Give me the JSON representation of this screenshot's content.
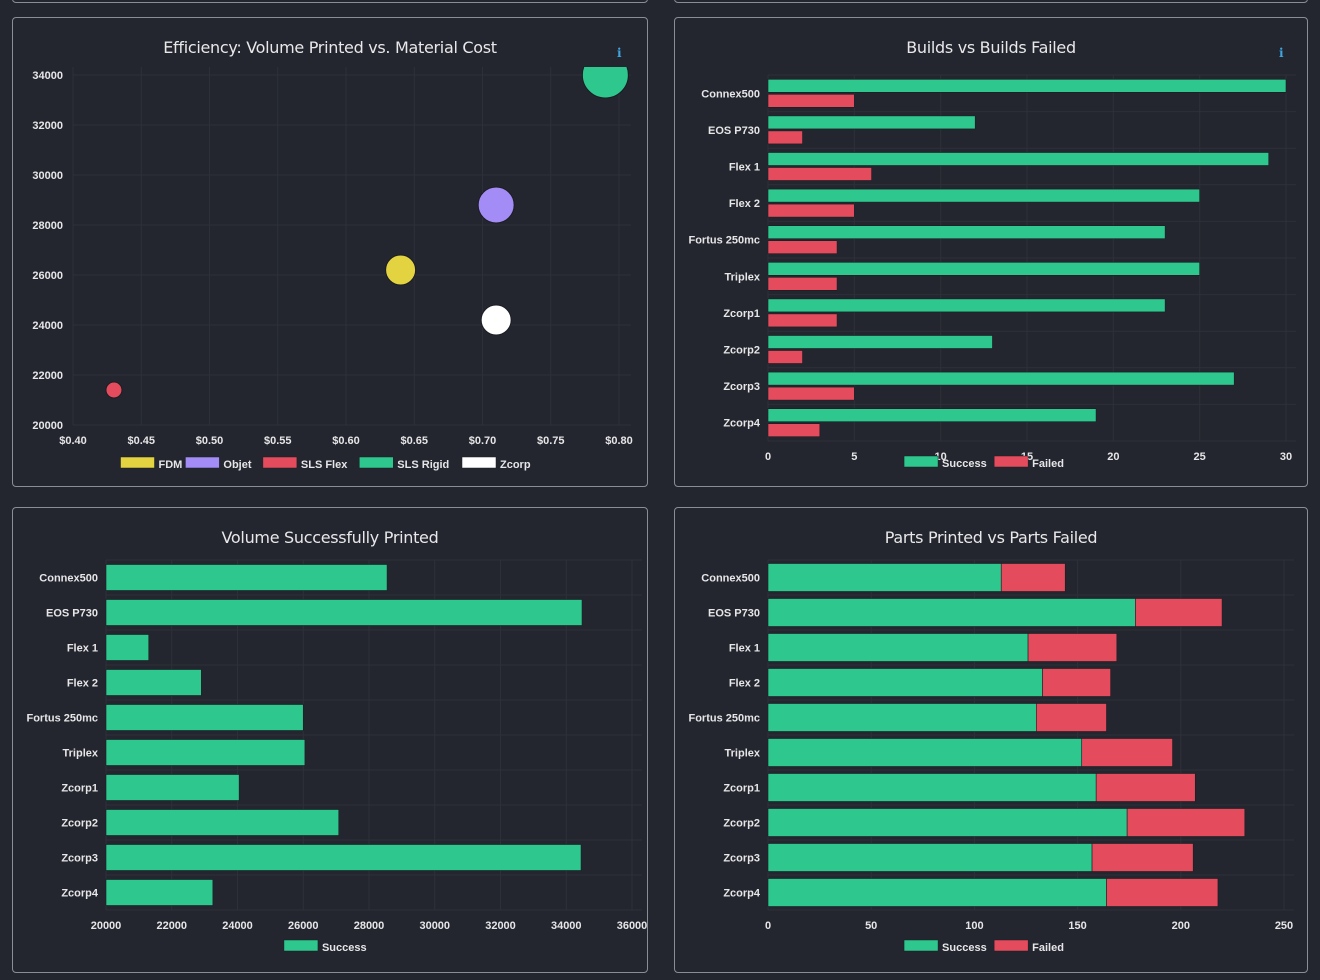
{
  "theme": {
    "background": "#24262f",
    "success_color": "#2ec88f",
    "failed_color": "#e44c5e",
    "info_color": "#3fa6e0"
  },
  "panels": {
    "efficiency": {
      "title": "Efficiency: Volume Printed vs. Material Cost",
      "info_icon": "i"
    },
    "builds": {
      "title": "Builds vs Builds Failed",
      "info_icon": "i"
    },
    "volume": {
      "title": "Volume Successfully Printed"
    },
    "parts": {
      "title": "Parts Printed vs Parts Failed"
    }
  },
  "chart_data": [
    {
      "id": "efficiency",
      "type": "scatter",
      "title": "Efficiency: Volume Printed vs. Material Cost",
      "xlabel": "",
      "ylabel": "",
      "xlim": [
        0.4,
        0.8
      ],
      "ylim": [
        20000,
        34000
      ],
      "x_ticks": [
        "$0.40",
        "$0.45",
        "$0.50",
        "$0.55",
        "$0.60",
        "$0.65",
        "$0.70",
        "$0.75",
        "$0.80"
      ],
      "x_tick_values": [
        0.4,
        0.45,
        0.5,
        0.55,
        0.6,
        0.65,
        0.7,
        0.75,
        0.8
      ],
      "y_ticks": [
        "20000",
        "22000",
        "24000",
        "26000",
        "28000",
        "30000",
        "32000",
        "34000"
      ],
      "y_tick_values": [
        20000,
        22000,
        24000,
        26000,
        28000,
        30000,
        32000,
        34000
      ],
      "grid": true,
      "legend_position": "bottom",
      "series": [
        {
          "name": "FDM",
          "color": "#e3d341",
          "x": 0.64,
          "y": 26200,
          "size": 15
        },
        {
          "name": "Objet",
          "color": "#a38cf6",
          "x": 0.71,
          "y": 28800,
          "size": 18
        },
        {
          "name": "SLS Flex",
          "color": "#e44c5e",
          "x": 0.43,
          "y": 21400,
          "size": 8
        },
        {
          "name": "SLS Rigid",
          "color": "#2ec88f",
          "x": 0.79,
          "y": 34000,
          "size": 23
        },
        {
          "name": "Zcorp",
          "color": "#ffffff",
          "x": 0.71,
          "y": 24200,
          "size": 15
        }
      ]
    },
    {
      "id": "builds",
      "type": "bar",
      "orientation": "horizontal",
      "title": "Builds vs Builds Failed",
      "categories": [
        "Connex500",
        "EOS P730",
        "Flex 1",
        "Flex 2",
        "Fortus 250mc",
        "Triplex",
        "Zcorp1",
        "Zcorp2",
        "Zcorp3",
        "Zcorp4"
      ],
      "xlim": [
        0,
        30
      ],
      "x_ticks": [
        "0",
        "5",
        "10",
        "15",
        "20",
        "25",
        "30"
      ],
      "x_tick_values": [
        0,
        5,
        10,
        15,
        20,
        25,
        30
      ],
      "grid": true,
      "legend_position": "bottom",
      "series": [
        {
          "name": "Success",
          "color": "#2ec88f",
          "values": [
            30,
            12,
            29,
            25,
            23,
            25,
            23,
            13,
            27,
            19
          ]
        },
        {
          "name": "Failed",
          "color": "#e44c5e",
          "values": [
            5,
            2,
            6,
            5,
            4,
            4,
            4,
            2,
            5,
            3
          ]
        }
      ]
    },
    {
      "id": "volume",
      "type": "bar",
      "orientation": "horizontal",
      "title": "Volume Successfully Printed",
      "categories": [
        "Connex500",
        "EOS P730",
        "Flex 1",
        "Flex 2",
        "Fortus 250mc",
        "Triplex",
        "Zcorp1",
        "Zcorp2",
        "Zcorp3",
        "Zcorp4"
      ],
      "xlim": [
        20000,
        36000
      ],
      "x_ticks": [
        "20000",
        "22000",
        "24000",
        "26000",
        "28000",
        "30000",
        "32000",
        "34000",
        "36000"
      ],
      "x_tick_values": [
        20000,
        22000,
        24000,
        26000,
        28000,
        30000,
        32000,
        34000,
        36000
      ],
      "grid": true,
      "legend_position": "bottom",
      "series": [
        {
          "name": "Success",
          "color": "#2ec88f",
          "values": [
            28550,
            34480,
            21300,
            22900,
            26000,
            26050,
            24050,
            27080,
            34450,
            23250
          ]
        }
      ]
    },
    {
      "id": "parts",
      "type": "bar",
      "orientation": "horizontal",
      "stacked": true,
      "title": "Parts Printed vs Parts Failed",
      "categories": [
        "Connex500",
        "EOS P730",
        "Flex 1",
        "Flex 2",
        "Fortus 250mc",
        "Triplex",
        "Zcorp1",
        "Zcorp2",
        "Zcorp3",
        "Zcorp4"
      ],
      "xlim": [
        0,
        250
      ],
      "x_ticks": [
        "0",
        "50",
        "100",
        "150",
        "200",
        "250"
      ],
      "x_tick_values": [
        0,
        50,
        100,
        150,
        200,
        250
      ],
      "grid": true,
      "legend_position": "bottom",
      "series": [
        {
          "name": "Success",
          "color": "#2ec88f",
          "values": [
            113,
            178,
            126,
            133,
            130,
            152,
            159,
            174,
            157,
            164
          ]
        },
        {
          "name": "Failed",
          "color": "#e44c5e",
          "values": [
            31,
            42,
            43,
            33,
            34,
            44,
            48,
            57,
            49,
            54
          ]
        }
      ]
    }
  ]
}
